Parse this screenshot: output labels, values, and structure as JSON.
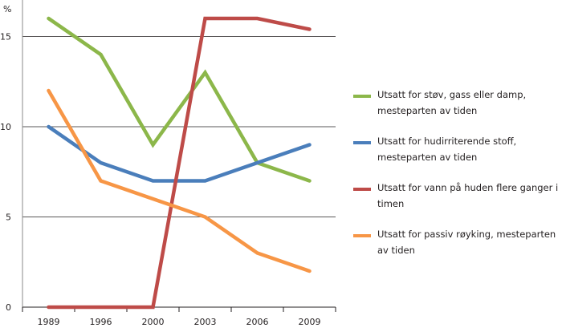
{
  "chart_data": {
    "type": "line",
    "ylabel": "%",
    "ylim": [
      0,
      17
    ],
    "yticks": [
      "0",
      "5",
      "10",
      "15"
    ],
    "ytick_values": [
      0,
      5,
      10,
      15
    ],
    "categories": [
      "1989",
      "1996",
      "2000",
      "2003",
      "2006",
      "2009"
    ],
    "grid": "horizontal",
    "legend_position": "right",
    "series": [
      {
        "name": "Utsatt for støv, gass eller damp, mesteparten av tiden",
        "color": "#8cb74a",
        "values": [
          16,
          14,
          9,
          13,
          8,
          7
        ]
      },
      {
        "name": "Utsatt for hudirriterende stoff, mesteparten av tiden",
        "color": "#4a7ebb",
        "values": [
          10,
          8,
          7,
          7,
          8,
          9
        ]
      },
      {
        "name": "Utsatt for vann på huden flere ganger i timen",
        "color": "#be4b48",
        "values": [
          0,
          0,
          0,
          16,
          16,
          15.4
        ]
      },
      {
        "name": "Utsatt for passiv røyking, mesteparten av tiden",
        "color": "#f79646",
        "values": [
          12,
          7,
          6,
          5,
          3,
          2
        ]
      }
    ]
  }
}
